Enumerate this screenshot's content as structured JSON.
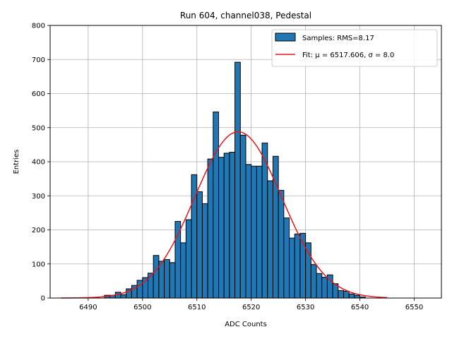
{
  "chart_data": {
    "type": "bar",
    "title": "Run 604, channel038, Pedestal",
    "xlabel": "ADC Counts",
    "ylabel": "Entries",
    "xlim": [
      6483,
      6555
    ],
    "ylim": [
      0,
      800
    ],
    "xticks": [
      6490,
      6500,
      6510,
      6520,
      6530,
      6540,
      6550
    ],
    "yticks": [
      0,
      100,
      200,
      300,
      400,
      500,
      600,
      700,
      800
    ],
    "grid": true,
    "legend_position": "top-right",
    "histogram": {
      "name": "Samples: RMS=8.17",
      "color": "#1f77b4",
      "bin_start": 6493,
      "bin_width": 1,
      "counts": [
        8,
        8,
        17,
        10,
        27,
        37,
        52,
        60,
        73,
        125,
        108,
        113,
        104,
        225,
        162,
        230,
        362,
        312,
        277,
        408,
        546,
        413,
        425,
        428,
        692,
        478,
        392,
        387,
        387,
        455,
        344,
        416,
        316,
        235,
        176,
        188,
        190,
        162,
        98,
        72,
        61,
        68,
        42,
        22,
        20,
        12,
        8,
        3
      ]
    },
    "fit": {
      "name": "Fit: μ = 6517.606, σ = 8.0",
      "color": "#e8161c",
      "mu": 6517.606,
      "sigma": 8.0,
      "amplitude": 488,
      "x_range": [
        6485,
        6545
      ]
    }
  }
}
